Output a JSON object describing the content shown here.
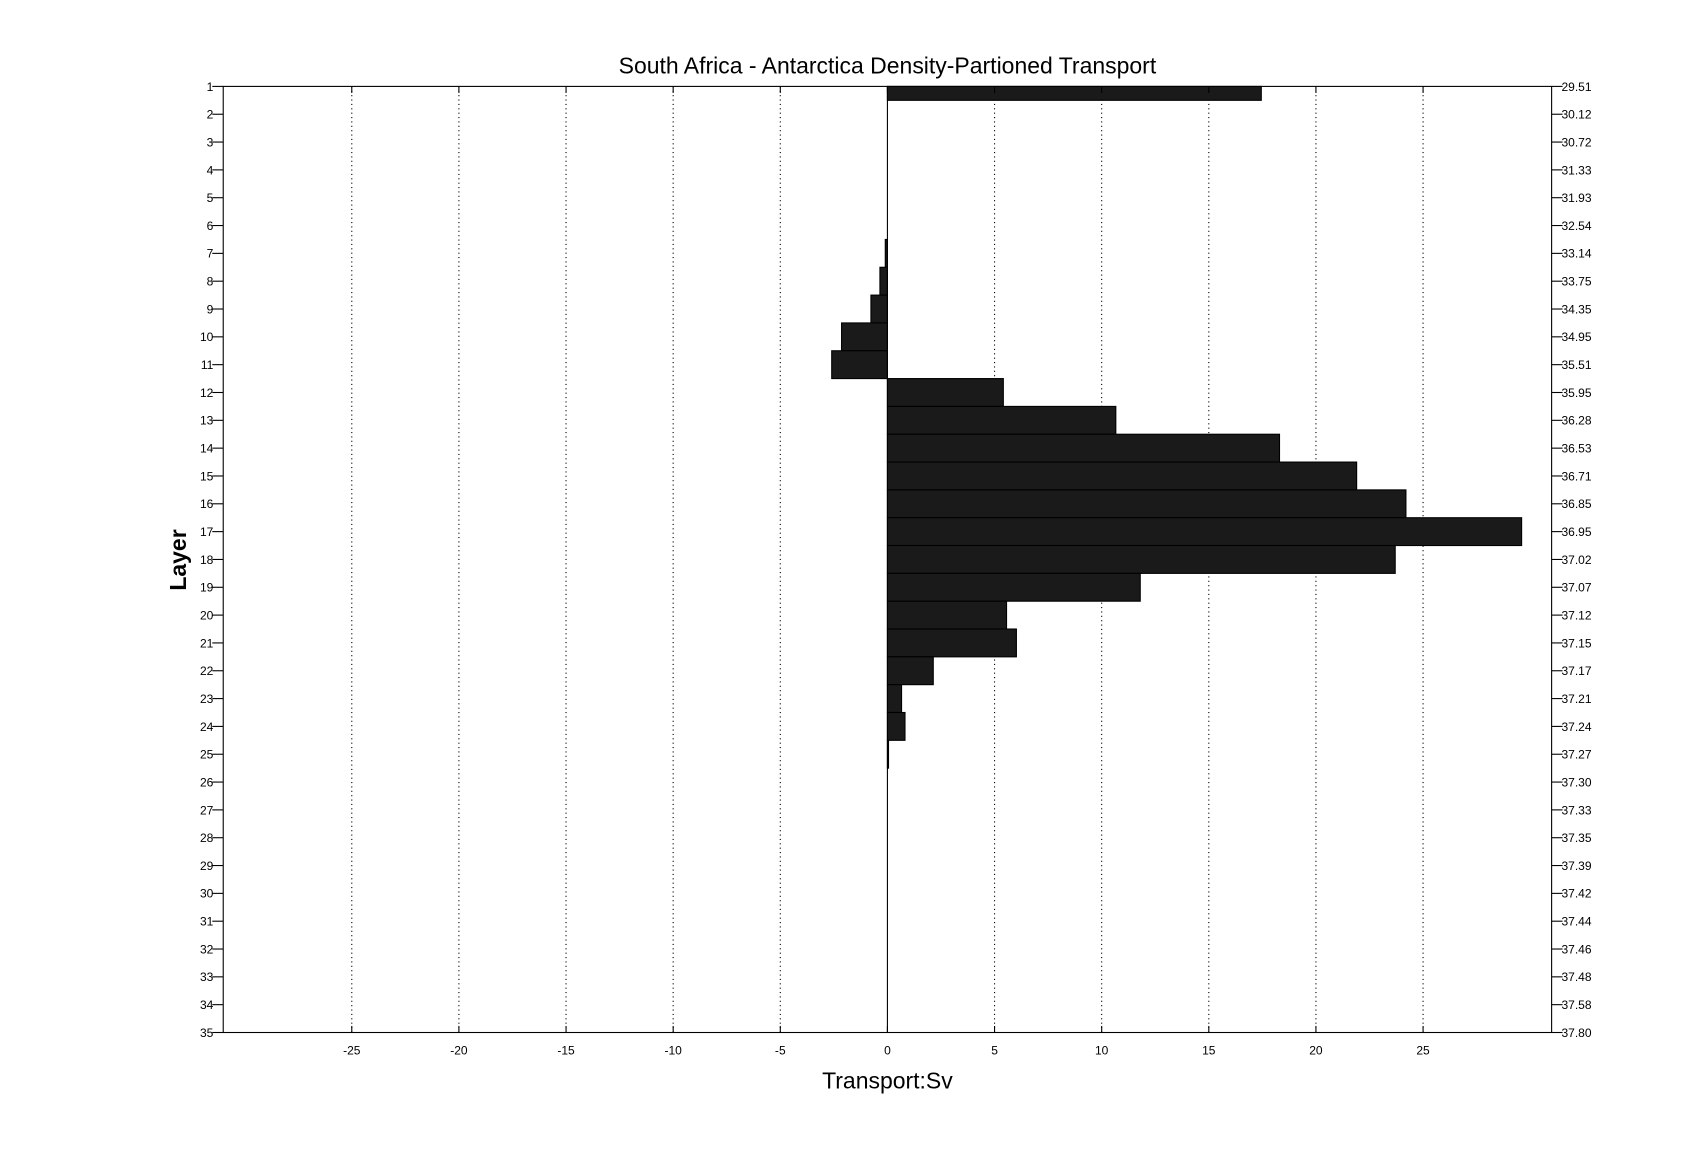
{
  "chart_data": {
    "type": "bar",
    "orientation": "horizontal",
    "title": "South Africa - Antarctica Density-Partioned Transport",
    "xlabel": "Transport:Sv",
    "ylabel": "Layer",
    "xlim": [
      -31,
      31
    ],
    "ylim": [
      1,
      35
    ],
    "y_reversed": true,
    "grid": "x-dotted",
    "bar_color": "#1a1a1a",
    "x_ticks": [
      -25,
      -20,
      -15,
      -10,
      -5,
      0,
      5,
      10,
      15,
      20,
      25
    ],
    "categories": [
      1,
      2,
      3,
      4,
      5,
      6,
      7,
      8,
      9,
      10,
      11,
      12,
      13,
      14,
      15,
      16,
      17,
      18,
      19,
      20,
      21,
      22,
      23,
      24,
      25,
      26,
      27,
      28,
      29,
      30,
      31,
      32,
      33,
      34,
      35
    ],
    "right_tick_labels": [
      "29.51",
      "30.12",
      "30.72",
      "31.33",
      "31.93",
      "32.54",
      "33.14",
      "33.75",
      "34.35",
      "34.95",
      "35.51",
      "35.95",
      "36.28",
      "36.53",
      "36.71",
      "36.85",
      "36.95",
      "37.02",
      "37.07",
      "37.12",
      "37.15",
      "37.17",
      "37.21",
      "37.24",
      "37.27",
      "37.30",
      "37.33",
      "37.35",
      "37.39",
      "37.42",
      "37.44",
      "37.46",
      "37.48",
      "37.58",
      "37.80"
    ],
    "values": [
      17.45,
      0,
      0,
      0,
      0,
      0,
      -0.1,
      -0.35,
      -0.77,
      -2.14,
      -2.6,
      5.41,
      10.66,
      18.3,
      21.9,
      24.2,
      29.6,
      23.7,
      11.8,
      5.56,
      6.02,
      2.14,
      0.66,
      0.82,
      0.05,
      0,
      0,
      0,
      0,
      0,
      0,
      0,
      0,
      0,
      0
    ]
  }
}
